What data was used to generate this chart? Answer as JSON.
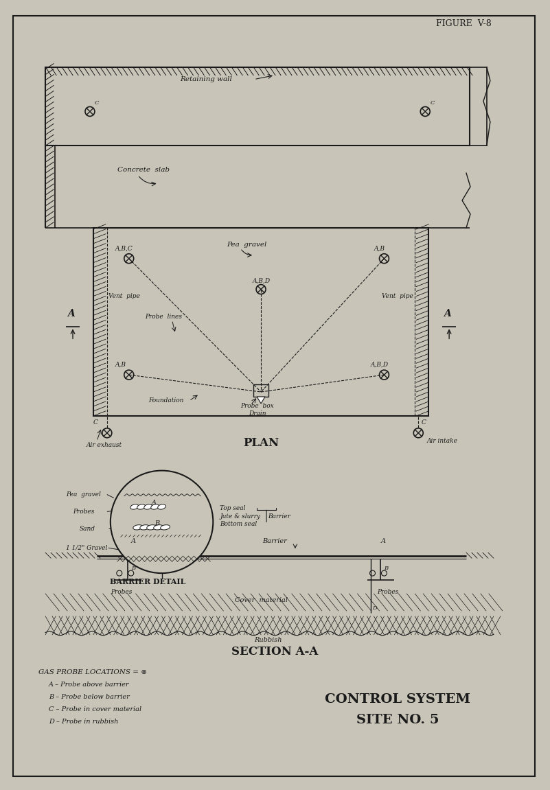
{
  "bg_color": "#c8c4b8",
  "line_color": "#1a1a1a",
  "hatch_color": "#1a1a1a",
  "fig_width": 8.01,
  "fig_height": 11.51,
  "border_color": "#1a1a1a",
  "figure_label": "FIGURE  V-8",
  "plan_label": "PLAN",
  "section_label": "SECTION A-A",
  "barrier_detail_label": "BARRIER DETAIL",
  "control_system_label": "CONTROL SYSTEM",
  "site_label": "SITE NO. 5",
  "gas_probe_title": "GAS PROBE LOCATIONS = ⊗",
  "gas_probe_items": [
    "A – Probe above barrier",
    "B – Probe below barrier",
    "C – Probe in cover material",
    "D – Probe in rubbish"
  ]
}
